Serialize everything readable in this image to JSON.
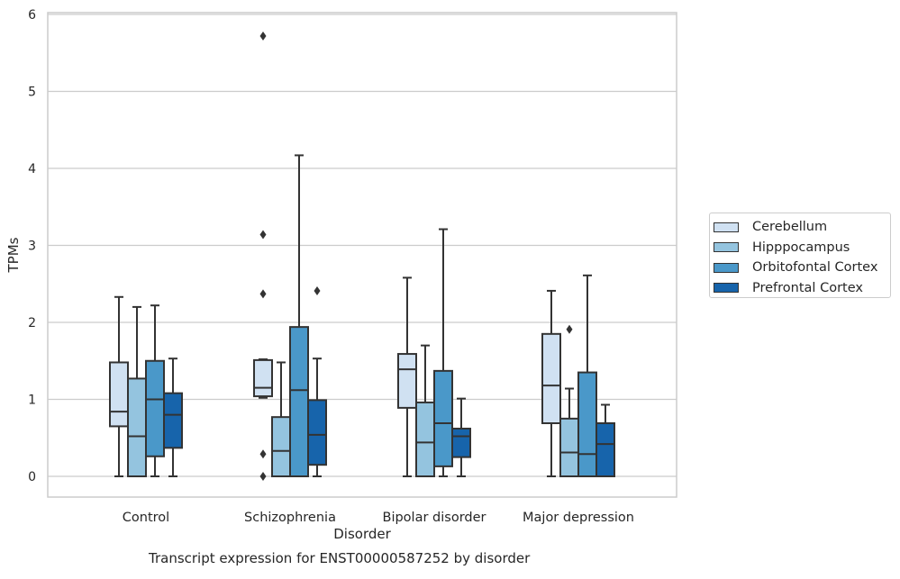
{
  "chart_data": {
    "type": "box",
    "categories": [
      "Control",
      "Schizophrenia",
      "Bipolar disorder",
      "Major depression"
    ],
    "xlabel": "Disorder",
    "ylabel": "TPMs",
    "ylim": [
      -0.27,
      6.02
    ],
    "yticks": [
      0,
      1,
      2,
      3,
      4,
      5,
      6
    ],
    "caption": "Transcript expression for ENST00000587252 by disorder",
    "legend_position": "right",
    "grid": true,
    "series": [
      {
        "name": "Cerebellum",
        "color": "#d0e1f2",
        "boxes": [
          {
            "whisker_low": 0,
            "q1": 0.65,
            "median": 0.84,
            "q3": 1.48,
            "whisker_high": 2.33,
            "outliers": []
          },
          {
            "whisker_low": 1.02,
            "q1": 1.04,
            "median": 1.15,
            "q3": 1.51,
            "whisker_high": 1.52,
            "outliers": [
              5.72,
              3.14,
              2.37,
              0.29,
              0.0
            ]
          },
          {
            "whisker_low": 0,
            "q1": 0.89,
            "median": 1.39,
            "q3": 1.59,
            "whisker_high": 2.58,
            "outliers": []
          },
          {
            "whisker_low": 0,
            "q1": 0.69,
            "median": 1.18,
            "q3": 1.85,
            "whisker_high": 2.41,
            "outliers": []
          }
        ]
      },
      {
        "name": "Hipppocampus",
        "color": "#94c4df",
        "boxes": [
          {
            "whisker_low": 0,
            "q1": 0,
            "median": 0.52,
            "q3": 1.27,
            "whisker_high": 2.2,
            "outliers": []
          },
          {
            "whisker_low": 0,
            "q1": 0,
            "median": 0.33,
            "q3": 0.77,
            "whisker_high": 1.48,
            "outliers": []
          },
          {
            "whisker_low": 0,
            "q1": 0,
            "median": 0.44,
            "q3": 0.96,
            "whisker_high": 1.7,
            "outliers": []
          },
          {
            "whisker_low": 0,
            "q1": 0,
            "median": 0.31,
            "q3": 0.75,
            "whisker_high": 1.14,
            "outliers": [
              1.91
            ]
          }
        ]
      },
      {
        "name": "Orbitofontal Cortex",
        "color": "#4a98c9",
        "boxes": [
          {
            "whisker_low": 0,
            "q1": 0.26,
            "median": 1.0,
            "q3": 1.5,
            "whisker_high": 2.22,
            "outliers": []
          },
          {
            "whisker_low": 0,
            "q1": 0,
            "median": 1.12,
            "q3": 1.94,
            "whisker_high": 4.17,
            "outliers": []
          },
          {
            "whisker_low": 0,
            "q1": 0.13,
            "median": 0.69,
            "q3": 1.37,
            "whisker_high": 3.21,
            "outliers": []
          },
          {
            "whisker_low": 0,
            "q1": 0,
            "median": 0.29,
            "q3": 1.35,
            "whisker_high": 2.61,
            "outliers": []
          }
        ]
      },
      {
        "name": "Prefrontal Cortex",
        "color": "#1764ab",
        "boxes": [
          {
            "whisker_low": 0,
            "q1": 0.37,
            "median": 0.8,
            "q3": 1.08,
            "whisker_high": 1.53,
            "outliers": []
          },
          {
            "whisker_low": 0,
            "q1": 0.15,
            "median": 0.54,
            "q3": 0.99,
            "whisker_high": 1.53,
            "outliers": [
              2.41
            ]
          },
          {
            "whisker_low": 0,
            "q1": 0.25,
            "median": 0.52,
            "q3": 0.62,
            "whisker_high": 1.01,
            "outliers": []
          },
          {
            "whisker_low": 0,
            "q1": 0,
            "median": 0.42,
            "q3": 0.69,
            "whisker_high": 0.93,
            "outliers": []
          }
        ]
      }
    ]
  }
}
